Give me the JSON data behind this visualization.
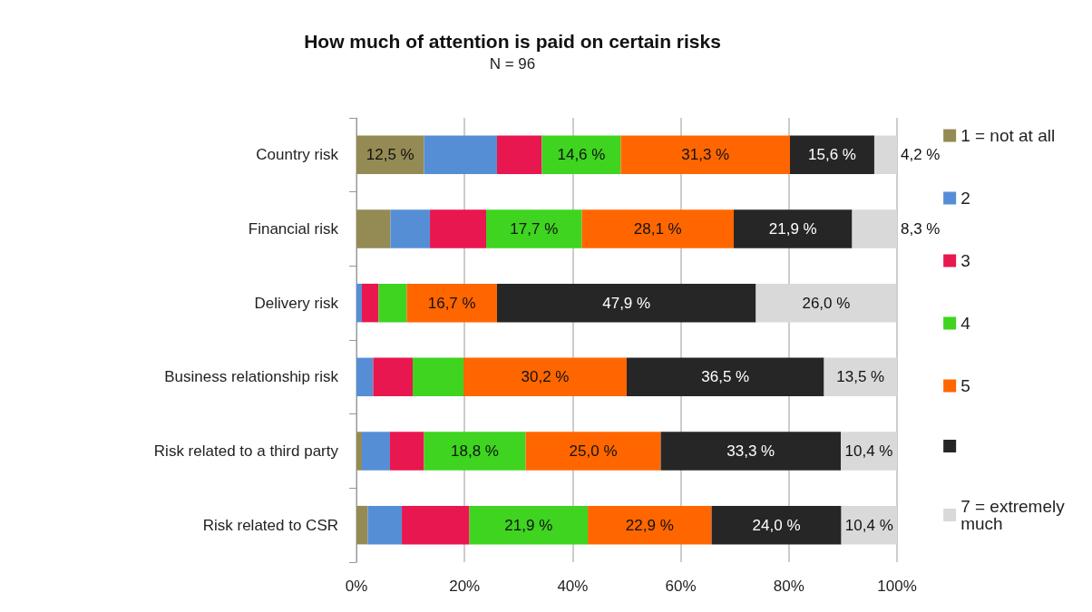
{
  "chart_data": {
    "type": "bar",
    "orientation": "horizontal",
    "stacked": true,
    "title": "How much of attention is paid on certain risks",
    "subtitle": "N = 96",
    "categories": [
      "Country risk",
      "Financial risk",
      "Delivery risk",
      "Business relationship risk",
      "Risk related to a third party",
      "Risk related to CSR"
    ],
    "series": [
      {
        "name": "1 = not at all",
        "color": "#948a54",
        "values": [
          12.5,
          6.3,
          0,
          0,
          1.0,
          2.1
        ],
        "value_labels": [
          "12,5 %",
          null,
          null,
          null,
          null,
          null
        ]
      },
      {
        "name": "2",
        "color": "#558ed5",
        "values": [
          13.5,
          7.3,
          1.0,
          3.1,
          5.2,
          6.3
        ],
        "value_labels": [
          null,
          null,
          null,
          null,
          null,
          null
        ]
      },
      {
        "name": "3",
        "color": "#e8174f",
        "values": [
          8.3,
          10.4,
          3.1,
          7.3,
          6.3,
          12.5
        ],
        "value_labels": [
          null,
          null,
          null,
          null,
          null,
          null
        ]
      },
      {
        "name": "4",
        "color": "#3ed420",
        "values": [
          14.6,
          17.7,
          5.2,
          9.4,
          18.8,
          21.9
        ],
        "value_labels": [
          "14,6 %",
          "17,7 %",
          null,
          null,
          "18,8 %",
          "21,9 %"
        ]
      },
      {
        "name": "5",
        "color": "#ff6600",
        "values": [
          31.3,
          28.1,
          16.7,
          30.2,
          25.0,
          22.9
        ],
        "value_labels": [
          "31,3 %",
          "28,1 %",
          "16,7 %",
          "30,2 %",
          "25,0 %",
          "22,9 %"
        ]
      },
      {
        "name": null,
        "color": "#262626",
        "values": [
          15.6,
          21.9,
          47.9,
          36.5,
          33.3,
          24.0
        ],
        "value_labels": [
          "15,6 %",
          "21,9 %",
          "47,9 %",
          "36,5 %",
          "33,3 %",
          "24,0 %"
        ]
      },
      {
        "name": "7 = extremely much",
        "color": "#d9d9d9",
        "values": [
          4.2,
          8.3,
          26.0,
          13.5,
          10.4,
          10.4
        ],
        "value_labels": [
          "4,2 %",
          "8,3 %",
          "26,0 %",
          "13,5 %",
          "10,4 %",
          "10,4 %"
        ]
      }
    ],
    "xlim": [
      0,
      100
    ],
    "xticks": [
      {
        "value": 0,
        "label": "0%"
      },
      {
        "value": 20,
        "label": "20%"
      },
      {
        "value": 40,
        "label": "40%"
      },
      {
        "value": 60,
        "label": "60%"
      },
      {
        "value": 80,
        "label": "80%"
      },
      {
        "value": 100,
        "label": "100%"
      }
    ],
    "grid": "x",
    "legend": "right"
  }
}
